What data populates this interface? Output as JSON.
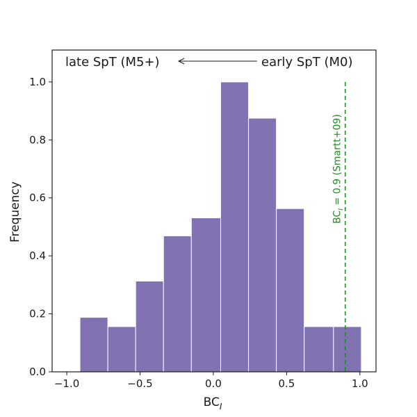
{
  "chart_data": {
    "type": "bar",
    "subtype": "histogram",
    "title": "",
    "xlabel": "BC",
    "xlabel_subscript": "I",
    "ylabel": "Frequency",
    "xlim": [
      -1.1,
      1.11
    ],
    "ylim": [
      0,
      1.11
    ],
    "xticks": [
      -1.0,
      -0.5,
      0.0,
      0.5,
      1.0
    ],
    "xtick_labels": [
      "−1.0",
      "−0.5",
      "0.0",
      "0.5",
      "1.0"
    ],
    "yticks": [
      0.0,
      0.2,
      0.4,
      0.6,
      0.8,
      1.0
    ],
    "ytick_labels": [
      "0.0",
      "0.2",
      "0.4",
      "0.6",
      "0.8",
      "1.0"
    ],
    "grid": false,
    "bins": [
      {
        "x0": -0.91,
        "x1": -0.72,
        "value": 0.188
      },
      {
        "x0": -0.72,
        "x1": -0.53,
        "value": 0.156
      },
      {
        "x0": -0.53,
        "x1": -0.34,
        "value": 0.313
      },
      {
        "x0": -0.34,
        "x1": -0.15,
        "value": 0.469
      },
      {
        "x0": -0.15,
        "x1": 0.05,
        "value": 0.531
      },
      {
        "x0": 0.05,
        "x1": 0.24,
        "value": 1.0
      },
      {
        "x0": 0.24,
        "x1": 0.43,
        "value": 0.875
      },
      {
        "x0": 0.43,
        "x1": 0.62,
        "value": 0.563
      },
      {
        "x0": 0.62,
        "x1": 0.82,
        "value": 0.156
      },
      {
        "x0": 0.82,
        "x1": 1.01,
        "value": 0.156
      }
    ],
    "bar_color": "#8172b2",
    "reference_line": {
      "x": 0.9,
      "y_top": 1.0,
      "label": "BC",
      "label_subscript": "I",
      "label_rest": " = 0.9 (Smartt+09)",
      "color": "#228b22"
    },
    "annotation": {
      "left_text": "late SpT (M5+)",
      "right_text": "early SpT (M0)"
    }
  }
}
